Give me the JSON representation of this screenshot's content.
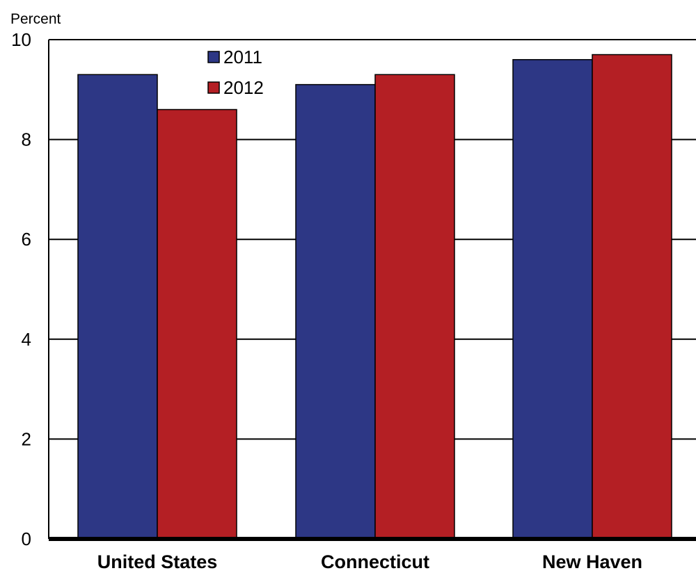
{
  "chart_data": {
    "type": "bar",
    "title": "",
    "xlabel": "",
    "ylabel": "Percent",
    "ylim": [
      0,
      10
    ],
    "yticks": [
      "0",
      "2",
      "4",
      "6",
      "8",
      "10"
    ],
    "grid": true,
    "legend_position": "top-left",
    "categories": [
      "United States",
      "Connecticut",
      "New Haven"
    ],
    "series": [
      {
        "name": "2011",
        "color": "#2D3785",
        "values": [
          9.3,
          9.1,
          9.6
        ]
      },
      {
        "name": "2012",
        "color": "#B41F24",
        "values": [
          8.6,
          9.3,
          9.7
        ]
      }
    ]
  }
}
